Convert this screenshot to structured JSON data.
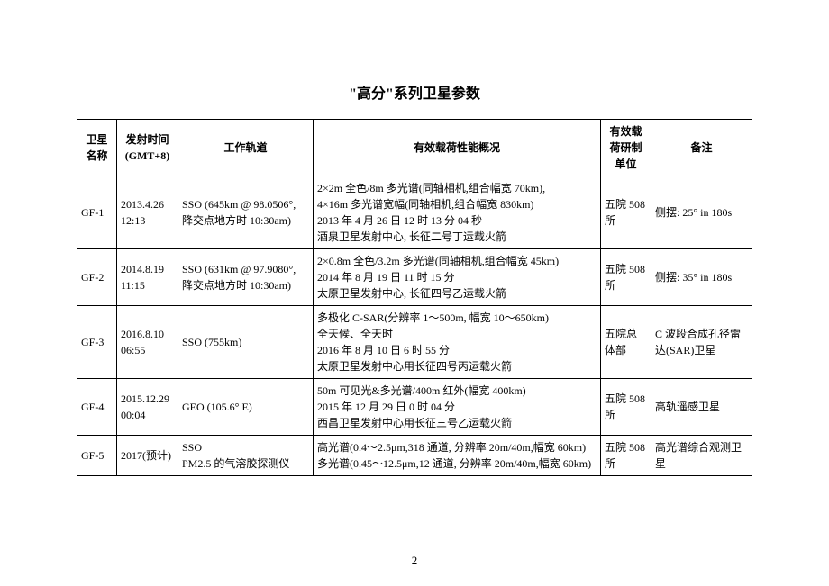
{
  "title": "\"高分\"系列卫星参数",
  "pageNumber": "2",
  "columns": [
    "卫星名称",
    "发射时间 (GMT+8)",
    "工作轨道",
    "有效载荷性能概况",
    "有效载荷研制单位",
    "备注"
  ],
  "rows": [
    {
      "name": "GF-1",
      "time": "2013.4.26\n12:13",
      "orbit": "SSO (645km @ 98.0506°,\n降交点地方时 10:30am)",
      "payload": "2×2m 全色/8m 多光谱(同轴相机,组合幅宽 70km),\n4×16m 多光谱宽幅(同轴相机,组合幅宽 830km)\n2013 年 4 月 26 日 12 时 13 分 04 秒\n酒泉卫星发射中心, 长征二号丁运载火箭",
      "dev": "五院 508 所",
      "remark": "侧摆: 25° in 180s"
    },
    {
      "name": "GF-2",
      "time": "2014.8.19\n11:15",
      "orbit": "SSO (631km @ 97.9080°,\n降交点地方时 10:30am)",
      "payload": "2×0.8m 全色/3.2m 多光谱(同轴相机,组合幅宽 45km)\n2014 年 8 月 19 日 11 时 15 分\n太原卫星发射中心, 长征四号乙运载火箭",
      "dev": "五院 508 所",
      "remark": "侧摆: 35° in 180s"
    },
    {
      "name": "GF-3",
      "time": "2016.8.10\n06:55",
      "orbit": "SSO (755km)",
      "payload": "多极化 C-SAR(分辨率 1～500m, 幅宽 10～650km)\n全天候、全天时\n2016 年 8 月 10 日 6 时 55 分\n太原卫星发射中心用长征四号丙运载火箭",
      "dev": "五院总体部",
      "remark": "C 波段合成孔径雷达(SAR)卫星"
    },
    {
      "name": "GF-4",
      "time": "2015.12.29\n00:04",
      "orbit": "GEO (105.6° E)",
      "payload": "50m 可见光&多光谱/400m 红外(幅宽 400km)\n2015 年 12 月 29 日 0 时 04 分\n西昌卫星发射中心用长征三号乙运载火箭",
      "dev": "五院 508 所",
      "remark": "高轨遥感卫星"
    },
    {
      "name": "GF-5",
      "time": "2017(预计)",
      "orbit": "SSO\nPM2.5 的气溶胶探测仪",
      "payload": "高光谱(0.4～2.5μm,318 通道, 分辨率 20m/40m,幅宽 60km)\n多光谱(0.45～12.5μm,12 通道, 分辨率 20m/40m,幅宽 60km)",
      "dev": "五院 508 所",
      "remark": "高光谱综合观测卫星"
    }
  ]
}
